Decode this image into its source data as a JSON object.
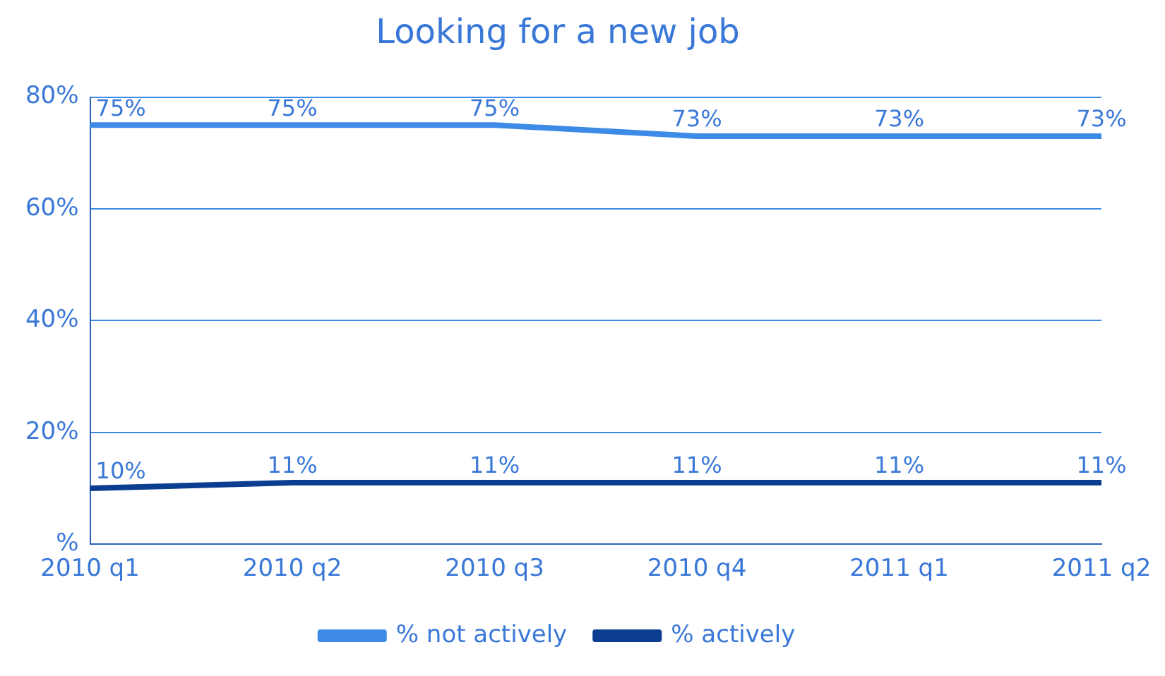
{
  "chart_data": {
    "type": "line",
    "title": "Looking for a new job",
    "categories": [
      "2010 q1",
      "2010 q2",
      "2010 q3",
      "2010 q4",
      "2011 q1",
      "2011 q2"
    ],
    "series": [
      {
        "name": "% not actively",
        "color": "#3d8be6",
        "values": [
          75,
          75,
          75,
          73,
          73,
          73
        ],
        "value_labels": [
          "75%",
          "75%",
          "75%",
          "73%",
          "73%",
          "73%"
        ]
      },
      {
        "name": "% actively",
        "color": "#0b3d91",
        "values": [
          10,
          11,
          11,
          11,
          11,
          11
        ],
        "value_labels": [
          "10%",
          "11%",
          "11%",
          "11%",
          "11%",
          "11%"
        ]
      }
    ],
    "ylim": [
      0,
      80
    ],
    "yticks": [
      {
        "value": 0,
        "label": "%"
      },
      {
        "value": 20,
        "label": "20%"
      },
      {
        "value": 40,
        "label": "40%"
      },
      {
        "value": 60,
        "label": "60%"
      },
      {
        "value": 80,
        "label": "80%"
      }
    ],
    "grid": "y",
    "legend": "bottom",
    "marker": "none",
    "line_style": "solid"
  }
}
